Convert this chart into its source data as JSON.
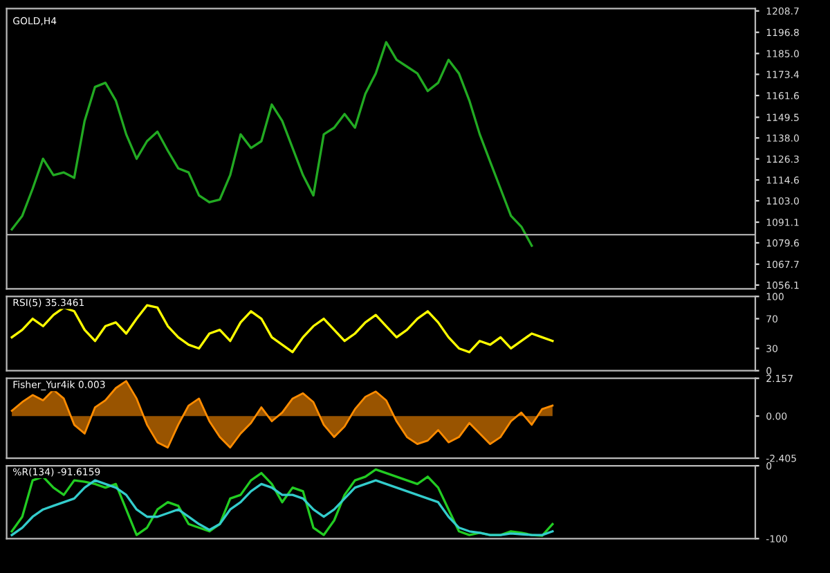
{
  "chart_data": [
    {
      "type": "line",
      "title": "GOLD,H4",
      "categories": [
        null,
        null,
        null,
        null,
        null,
        null,
        null,
        null,
        null,
        null,
        null,
        null,
        null,
        null,
        null,
        null,
        null,
        null,
        null,
        null,
        null,
        null,
        null,
        null,
        null,
        null,
        null,
        null,
        null,
        null,
        null,
        null,
        null,
        null,
        null,
        null,
        null,
        null,
        null,
        null,
        null,
        null,
        null,
        null,
        null,
        null,
        null,
        null,
        null,
        null,
        null,
        null,
        null,
        null,
        null,
        null,
        null,
        null,
        null,
        null,
        null,
        null,
        null,
        null,
        null,
        null,
        null,
        null,
        null,
        null,
        null,
        null
      ],
      "series": [
        {
          "color": "#22aa22",
          "values": [
            1087.1,
            1094.6,
            1109.7,
            1126.4,
            1117.3,
            1118.8,
            1115.8,
            1147.5,
            1166.4,
            1168.7,
            1158.8,
            1140.0,
            1126.4,
            1136.2,
            1141.5,
            1130.9,
            1121.1,
            1118.8,
            1106.0,
            1102.2,
            1103.7,
            1117.3,
            1140.0,
            1132.4,
            1136.2,
            1156.6,
            1147.5,
            1132.4,
            1117.3,
            1106.0,
            1140.0,
            1143.7,
            1151.3,
            1143.7,
            1162.6,
            1173.9,
            1191.3,
            1181.5,
            1177.7,
            1173.9,
            1164.1,
            1168.7,
            1181.5,
            1173.9,
            1158.8,
            1140.0,
            1124.8,
            1109.7,
            1094.6,
            1088.6,
            1078.0,
            null,
            null,
            null,
            null,
            null,
            null,
            null,
            null,
            null,
            null,
            null,
            null,
            null,
            null,
            null,
            null,
            null,
            null,
            null,
            null,
            null
          ]
        }
      ],
      "ylim": [
        1054.0,
        1210.0
      ],
      "yticks": [
        1056.1,
        1067.7,
        1079.6,
        1091.1,
        {
          "value": 1103,
          "label": "1103.0"
        },
        1114.6,
        1126.3,
        {
          "value": 1138,
          "label": "1138.0"
        },
        1149.5,
        1161.6,
        1173.4,
        {
          "value": 1185,
          "label": "1185.0"
        },
        1196.8,
        1208.7
      ],
      "ref_lines": [
        {
          "axis": "y",
          "value": 1084.1,
          "color": "#aaaaaa"
        }
      ],
      "tick_labels": "y"
    },
    {
      "type": "line",
      "title": "RSI(5) 35.3461",
      "categories": [
        null,
        null,
        null,
        null,
        null,
        null,
        null,
        null,
        null,
        null,
        null,
        null,
        null,
        null,
        null,
        null,
        null,
        null,
        null,
        null,
        null,
        null,
        null,
        null,
        null,
        null,
        null,
        null,
        null,
        null,
        null,
        null,
        null,
        null,
        null,
        null,
        null,
        null,
        null,
        null,
        null,
        null,
        null,
        null,
        null,
        null,
        null,
        null,
        null,
        null,
        null,
        null,
        null,
        null,
        null,
        null,
        null,
        null,
        null,
        null,
        null,
        null,
        null,
        null,
        null,
        null,
        null,
        null,
        null,
        null,
        null,
        null
      ],
      "series": [
        {
          "color": "#ffff00",
          "values": [
            45,
            55,
            70,
            60,
            75,
            85,
            80,
            55,
            40,
            60,
            65,
            50,
            70,
            88,
            85,
            60,
            45,
            35,
            30,
            50,
            55,
            40,
            65,
            80,
            70,
            45,
            35,
            25,
            45,
            60,
            70,
            55,
            40,
            50,
            65,
            75,
            60,
            45,
            55,
            70,
            80,
            65,
            45,
            30,
            25,
            40,
            35,
            45,
            30,
            40,
            50,
            45,
            40,
            null,
            null,
            null,
            null,
            null,
            null,
            null,
            null,
            null,
            null,
            null,
            null,
            null,
            null,
            null,
            null,
            null,
            null,
            null
          ]
        }
      ],
      "ylim": [
        0,
        100
      ],
      "yticks": [
        0,
        30,
        70,
        100
      ],
      "tick_labels": "y"
    },
    {
      "type": "area",
      "title": "Fisher_Yur4ik 0.003",
      "categories": [
        null,
        null,
        null,
        null,
        null,
        null,
        null,
        null,
        null,
        null,
        null,
        null,
        null,
        null,
        null,
        null,
        null,
        null,
        null,
        null,
        null,
        null,
        null,
        null,
        null,
        null,
        null,
        null,
        null,
        null,
        null,
        null,
        null,
        null,
        null,
        null,
        null,
        null,
        null,
        null,
        null,
        null,
        null,
        null,
        null,
        null,
        null,
        null,
        null,
        null,
        null,
        null,
        null,
        null,
        null,
        null,
        null,
        null,
        null,
        null,
        null,
        null,
        null,
        null,
        null,
        null,
        null,
        null,
        null,
        null,
        null,
        null
      ],
      "series": [
        {
          "color": "#ff8c00",
          "values": [
            0.3,
            0.8,
            1.2,
            0.9,
            1.5,
            1.0,
            -0.5,
            -1.0,
            0.5,
            0.9,
            1.6,
            2.0,
            1.0,
            -0.5,
            -1.5,
            -1.8,
            -0.5,
            0.6,
            1.0,
            -0.3,
            -1.2,
            -1.8,
            -1.0,
            -0.4,
            0.5,
            -0.3,
            0.2,
            1.0,
            1.3,
            0.8,
            -0.5,
            -1.2,
            -0.6,
            0.4,
            1.1,
            1.4,
            0.9,
            -0.3,
            -1.2,
            -1.6,
            -1.4,
            -0.8,
            -1.5,
            -1.2,
            -0.4,
            -1.0,
            -1.6,
            -1.2,
            -0.3,
            0.2,
            -0.5,
            0.4,
            0.6,
            null,
            null,
            null,
            null,
            null,
            null,
            null,
            null,
            null,
            null,
            null,
            null,
            null,
            null,
            null,
            null,
            null,
            null,
            null
          ]
        }
      ],
      "ylim": [
        -2.405,
        2.157
      ],
      "yticks": [
        -2.405,
        {
          "value": 0,
          "label": "0.00"
        },
        2.157
      ],
      "tick_labels": "y"
    },
    {
      "type": "line",
      "title": "%R(134) -91.6159",
      "categories": [
        null,
        null,
        null,
        null,
        null,
        null,
        null,
        null,
        null,
        null,
        null,
        null,
        null,
        null,
        null,
        null,
        null,
        null,
        null,
        null,
        null,
        null,
        null,
        null,
        null,
        null,
        null,
        null,
        null,
        null,
        null,
        null,
        null,
        null,
        null,
        null,
        null,
        null,
        null,
        null,
        null,
        null,
        null,
        null,
        null,
        null,
        null,
        null,
        null,
        null,
        null,
        null,
        null,
        null,
        null,
        null,
        null,
        null,
        null,
        null,
        null,
        null,
        null,
        null,
        null,
        null,
        null,
        null,
        null,
        null,
        null,
        null
      ],
      "series": [
        {
          "color": "#22cc22",
          "values": [
            -90,
            -70,
            -20,
            -15,
            -30,
            -40,
            -20,
            -22,
            -25,
            -30,
            -25,
            -60,
            -95,
            -85,
            -60,
            -50,
            -55,
            -80,
            -85,
            -90,
            -80,
            -45,
            -40,
            -20,
            -10,
            -25,
            -50,
            -30,
            -35,
            -85,
            -95,
            -75,
            -40,
            -20,
            -15,
            -5,
            -10,
            -15,
            -20,
            -25,
            -15,
            -30,
            -60,
            -90,
            -95,
            -92,
            -95,
            -95,
            -90,
            -92,
            -95,
            -96,
            -80,
            null,
            null,
            null,
            null,
            null,
            null,
            null,
            null,
            null,
            null,
            null,
            null,
            null,
            null,
            null,
            null,
            null,
            null,
            null
          ]
        },
        {
          "color": "#33cccc",
          "values": [
            -95,
            -85,
            -70,
            -60,
            -55,
            -50,
            -45,
            -30,
            -20,
            -25,
            -30,
            -40,
            -60,
            -70,
            -70,
            -65,
            -60,
            -70,
            -80,
            -88,
            -80,
            -60,
            -50,
            -35,
            -25,
            -30,
            -40,
            -40,
            -45,
            -60,
            -70,
            -60,
            -45,
            -30,
            -25,
            -20,
            -25,
            -30,
            -35,
            -40,
            -45,
            -50,
            -70,
            -85,
            -90,
            -92,
            -95,
            -95,
            -93,
            -94,
            -95,
            -95,
            -90,
            null,
            null,
            null,
            null,
            null,
            null,
            null,
            null,
            null,
            null,
            null,
            null,
            null,
            null,
            null,
            null,
            null,
            null,
            null
          ]
        }
      ],
      "ylim": [
        -100,
        0
      ],
      "yticks": [
        -100,
        0
      ],
      "tick_labels": "y"
    }
  ]
}
